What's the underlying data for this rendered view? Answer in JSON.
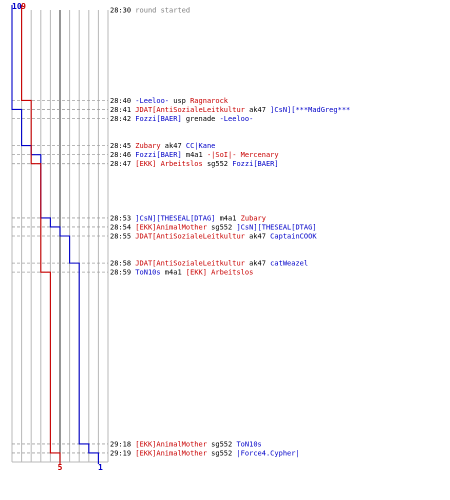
{
  "chart_data": {
    "type": "line",
    "series": [
      {
        "values": [
          {
            "time": "28:30",
            "count": 10
          },
          {
            "time": "28:40",
            "count": 10
          },
          {
            "time": "28:41",
            "count": 9
          },
          {
            "time": "28:42",
            "count": 9
          },
          {
            "time": "28:45",
            "count": 8
          },
          {
            "time": "28:46",
            "count": 7
          },
          {
            "time": "28:47",
            "count": 7
          },
          {
            "time": "28:53",
            "count": 6
          },
          {
            "time": "28:54",
            "count": 5
          },
          {
            "time": "28:55",
            "count": 4
          },
          {
            "time": "28:58",
            "count": 3
          },
          {
            "time": "28:59",
            "count": 3
          },
          {
            "time": "29:18",
            "count": 2
          },
          {
            "time": "29:19",
            "count": 1
          }
        ]
      },
      {
        "values": [
          {
            "time": "28:30",
            "count": 9
          },
          {
            "time": "28:40",
            "count": 8
          },
          {
            "time": "28:41",
            "count": 8
          },
          {
            "time": "28:42",
            "count": 8
          },
          {
            "time": "28:45",
            "count": 8
          },
          {
            "time": "28:46",
            "count": 8
          },
          {
            "time": "28:47",
            "count": 7
          },
          {
            "time": "28:53",
            "count": 7
          },
          {
            "time": "28:54",
            "count": 7
          },
          {
            "time": "28:55",
            "count": 7
          },
          {
            "time": "28:58",
            "count": 7
          },
          {
            "time": "28:59",
            "count": 6
          },
          {
            "time": "29:18",
            "count": 6
          },
          {
            "time": "29:19",
            "count": 5
          }
        ]
      }
    ],
    "start_counts": {
      "blue": "10",
      "red": "9"
    },
    "end_counts": {
      "blue": "1",
      "red": "5"
    }
  },
  "colors": {
    "blue": "#0000c8",
    "red": "#c80000",
    "gray": "#808080",
    "grid": "#b8b8b8"
  },
  "events": [
    {
      "time": "28:30",
      "parts": [
        {
          "text": "round started",
          "color": "gray"
        }
      ]
    },
    {
      "time": "28:40",
      "parts": [
        {
          "text": "-Leeloo-",
          "color": "blue"
        },
        {
          "text": " usp ",
          "color": "black"
        },
        {
          "text": "Ragnarock",
          "color": "red"
        }
      ]
    },
    {
      "time": "28:41",
      "parts": [
        {
          "text": "JDAT[AntiSozialeLeitkultur",
          "color": "red"
        },
        {
          "text": " ak47 ",
          "color": "black"
        },
        {
          "text": "]CsN][***MadGreg***",
          "color": "blue"
        }
      ]
    },
    {
      "time": "28:42",
      "parts": [
        {
          "text": "Fozzi[BAER]",
          "color": "blue"
        },
        {
          "text": " grenade ",
          "color": "black"
        },
        {
          "text": "-Leeloo-",
          "color": "blue"
        }
      ]
    },
    {
      "time": "28:45",
      "parts": [
        {
          "text": "Zubary",
          "color": "red"
        },
        {
          "text": " ak47 ",
          "color": "black"
        },
        {
          "text": "CC|Kane",
          "color": "blue"
        }
      ]
    },
    {
      "time": "28:46",
      "parts": [
        {
          "text": "Fozzi[BAER]",
          "color": "blue"
        },
        {
          "text": " m4a1 ",
          "color": "black"
        },
        {
          "text": "-|SoI|- Mercenary",
          "color": "red"
        }
      ]
    },
    {
      "time": "28:47",
      "parts": [
        {
          "text": "[EKK] Arbeitslos",
          "color": "red"
        },
        {
          "text": " sg552 ",
          "color": "black"
        },
        {
          "text": "Fozzi[BAER]",
          "color": "blue"
        }
      ]
    },
    {
      "time": "28:53",
      "parts": [
        {
          "text": "]CsN][THESEAL[DTAG]",
          "color": "blue"
        },
        {
          "text": " m4a1 ",
          "color": "black"
        },
        {
          "text": "Zubary",
          "color": "red"
        }
      ]
    },
    {
      "time": "28:54",
      "parts": [
        {
          "text": "[EKK]AnimalMother",
          "color": "red"
        },
        {
          "text": " sg552 ",
          "color": "black"
        },
        {
          "text": "]CsN][THESEAL[DTAG]",
          "color": "blue"
        }
      ]
    },
    {
      "time": "28:55",
      "parts": [
        {
          "text": "JDAT[AntiSozialeLeitkultur",
          "color": "red"
        },
        {
          "text": " ak47 ",
          "color": "black"
        },
        {
          "text": "CaptainCOOK",
          "color": "blue"
        }
      ]
    },
    {
      "time": "28:58",
      "parts": [
        {
          "text": "JDAT[AntiSozialeLeitkultur",
          "color": "red"
        },
        {
          "text": " ak47 ",
          "color": "black"
        },
        {
          "text": "catWeazel",
          "color": "blue"
        }
      ]
    },
    {
      "time": "28:59",
      "parts": [
        {
          "text": "ToN10s",
          "color": "blue"
        },
        {
          "text": " m4a1 ",
          "color": "black"
        },
        {
          "text": "[EKK] Arbeitslos",
          "color": "red"
        }
      ]
    },
    {
      "time": "29:18",
      "parts": [
        {
          "text": "[EKK]AnimalMother",
          "color": "red"
        },
        {
          "text": " sg552 ",
          "color": "black"
        },
        {
          "text": "ToN10s",
          "color": "blue"
        }
      ]
    },
    {
      "time": "29:19",
      "parts": [
        {
          "text": "[EKK]AnimalMother",
          "color": "red"
        },
        {
          "text": " sg552 ",
          "color": "black"
        },
        {
          "text": "|Force4.Cypher|",
          "color": "blue"
        }
      ]
    }
  ]
}
